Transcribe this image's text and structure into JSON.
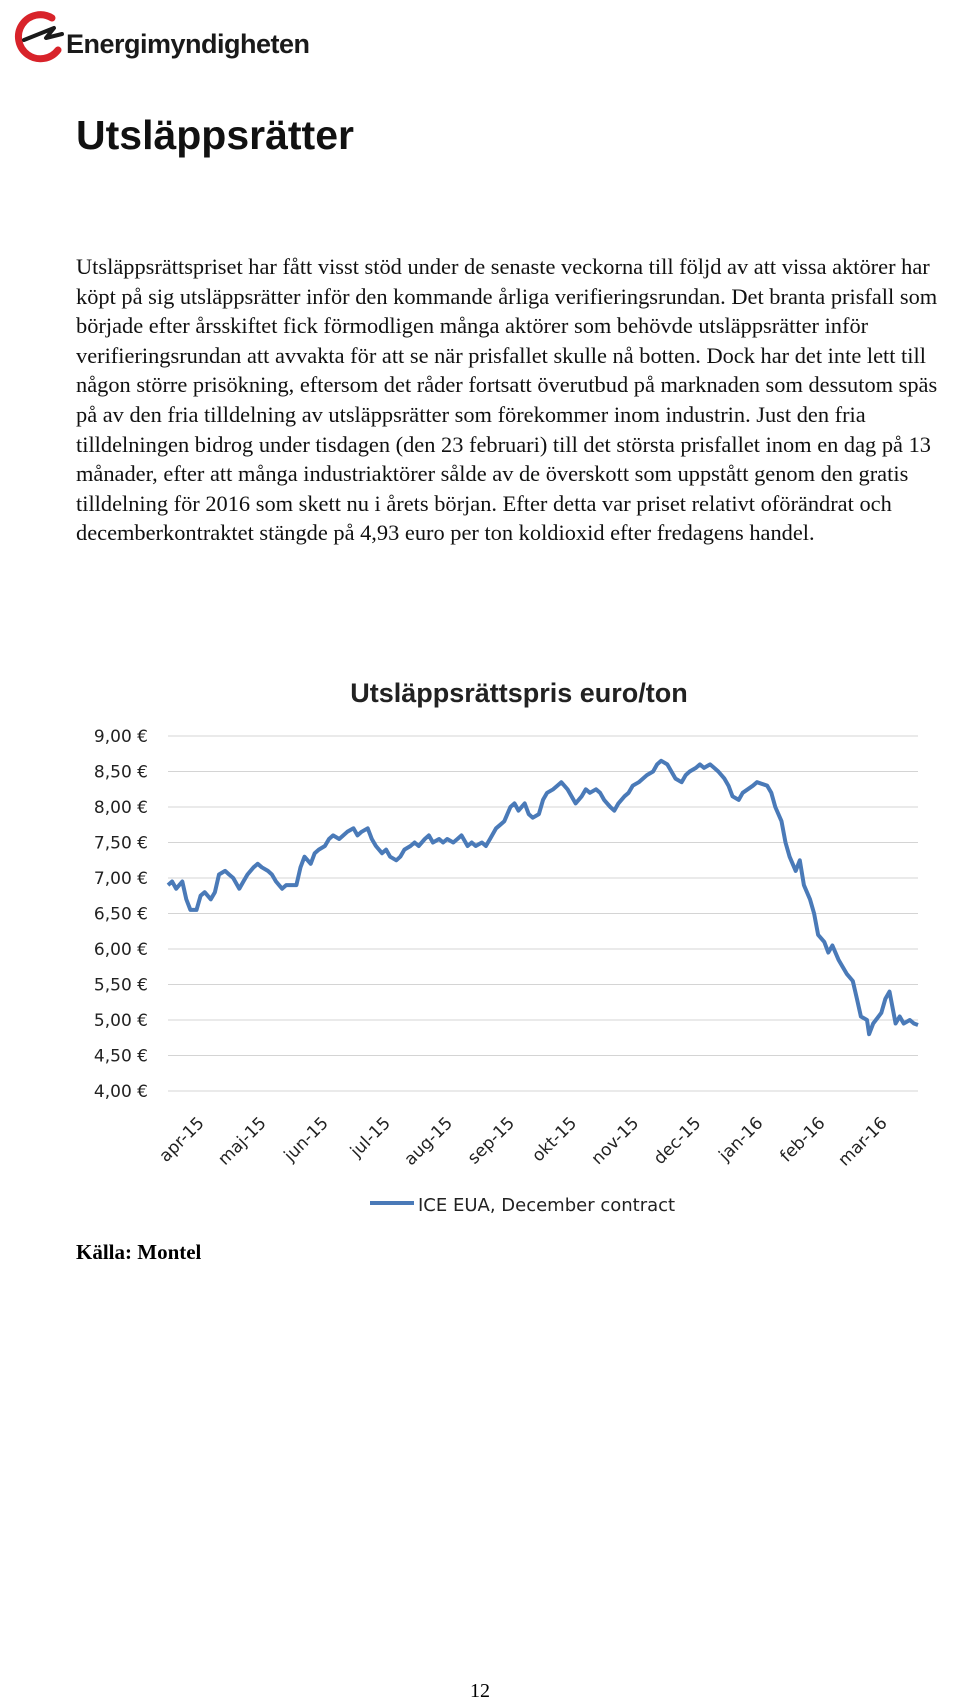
{
  "header": {
    "logo_text": "Energimyndigheten",
    "logo_icon": "energimyndigheten-logo-icon"
  },
  "page": {
    "title": "Utsläppsrätter",
    "paragraph": "Utsläppsrättspriset har fått visst stöd under de senaste veckorna till följd av att vissa aktörer har köpt på sig utsläppsrätter inför den kommande årliga verifieringsrundan. Det branta prisfall som började efter årsskiftet fick förmodligen många aktörer som behövde utsläppsrätter inför verifieringsrundan att avvakta för att se när prisfallet skulle nå botten. Dock har det inte lett till någon större prisökning, eftersom det råder fortsatt överutbud på marknaden som dessutom späs på av den fria tilldelning av utsläppsrätter som förekommer inom industrin. Just den fria tilldelningen bidrog under tisdagen (den 23 februari) till det största prisfallet inom en dag på 13 månader, efter att många industriaktörer sålde av de överskott som uppstått genom den gratis tilldelning för 2016 som skett nu i årets början. Efter detta var priset relativt oförändrat och decemberkontraktet stängde på 4,93 euro per ton koldioxid efter fredagens handel.",
    "source": "Källa: Montel",
    "page_number": "12"
  },
  "chart_data": {
    "type": "line",
    "title": "Utsläppsrättspris euro/ton",
    "xlabel": "",
    "ylabel": "",
    "ylim": [
      4.0,
      9.0
    ],
    "y_ticks": [
      "9,00 €",
      "8,50 €",
      "8,00 €",
      "7,50 €",
      "7,00 €",
      "6,50 €",
      "6,00 €",
      "5,50 €",
      "5,00 €",
      "4,50 €",
      "4,00 €"
    ],
    "y_tick_values": [
      9.0,
      8.5,
      8.0,
      7.5,
      7.0,
      6.5,
      6.0,
      5.5,
      5.0,
      4.5,
      4.0
    ],
    "x_ticks": [
      "apr-15",
      "maj-15",
      "jun-15",
      "jul-15",
      "aug-15",
      "sep-15",
      "okt-15",
      "nov-15",
      "dec-15",
      "jan-16",
      "feb-16",
      "mar-16"
    ],
    "grid": true,
    "legend_position": "bottom",
    "series": [
      {
        "name": "ICE EUA, December contract",
        "color": "#4a7ab8",
        "points": [
          [
            "2015-03-16",
            6.9
          ],
          [
            "2015-03-18",
            6.95
          ],
          [
            "2015-03-20",
            6.85
          ],
          [
            "2015-03-23",
            6.95
          ],
          [
            "2015-03-25",
            6.7
          ],
          [
            "2015-03-27",
            6.55
          ],
          [
            "2015-03-30",
            6.55
          ],
          [
            "2015-04-01",
            6.75
          ],
          [
            "2015-04-03",
            6.8
          ],
          [
            "2015-04-06",
            6.7
          ],
          [
            "2015-04-08",
            6.8
          ],
          [
            "2015-04-10",
            7.05
          ],
          [
            "2015-04-13",
            7.1
          ],
          [
            "2015-04-15",
            7.05
          ],
          [
            "2015-04-17",
            7.0
          ],
          [
            "2015-04-20",
            6.85
          ],
          [
            "2015-04-22",
            6.95
          ],
          [
            "2015-04-24",
            7.05
          ],
          [
            "2015-04-27",
            7.15
          ],
          [
            "2015-04-29",
            7.2
          ],
          [
            "2015-05-01",
            7.15
          ],
          [
            "2015-05-04",
            7.1
          ],
          [
            "2015-05-06",
            7.05
          ],
          [
            "2015-05-08",
            6.95
          ],
          [
            "2015-05-11",
            6.85
          ],
          [
            "2015-05-13",
            6.9
          ],
          [
            "2015-05-15",
            6.9
          ],
          [
            "2015-05-18",
            6.9
          ],
          [
            "2015-05-20",
            7.15
          ],
          [
            "2015-05-22",
            7.3
          ],
          [
            "2015-05-25",
            7.2
          ],
          [
            "2015-05-27",
            7.35
          ],
          [
            "2015-05-29",
            7.4
          ],
          [
            "2015-06-01",
            7.45
          ],
          [
            "2015-06-03",
            7.55
          ],
          [
            "2015-06-05",
            7.6
          ],
          [
            "2015-06-08",
            7.55
          ],
          [
            "2015-06-10",
            7.6
          ],
          [
            "2015-06-12",
            7.65
          ],
          [
            "2015-06-15",
            7.7
          ],
          [
            "2015-06-17",
            7.6
          ],
          [
            "2015-06-19",
            7.65
          ],
          [
            "2015-06-22",
            7.7
          ],
          [
            "2015-06-24",
            7.55
          ],
          [
            "2015-06-26",
            7.45
          ],
          [
            "2015-06-29",
            7.35
          ],
          [
            "2015-07-01",
            7.4
          ],
          [
            "2015-07-03",
            7.3
          ],
          [
            "2015-07-06",
            7.25
          ],
          [
            "2015-07-08",
            7.3
          ],
          [
            "2015-07-10",
            7.4
          ],
          [
            "2015-07-13",
            7.45
          ],
          [
            "2015-07-15",
            7.5
          ],
          [
            "2015-07-17",
            7.45
          ],
          [
            "2015-07-20",
            7.55
          ],
          [
            "2015-07-22",
            7.6
          ],
          [
            "2015-07-24",
            7.5
          ],
          [
            "2015-07-27",
            7.55
          ],
          [
            "2015-07-29",
            7.5
          ],
          [
            "2015-07-31",
            7.55
          ],
          [
            "2015-08-03",
            7.5
          ],
          [
            "2015-08-05",
            7.55
          ],
          [
            "2015-08-07",
            7.6
          ],
          [
            "2015-08-10",
            7.45
          ],
          [
            "2015-08-12",
            7.5
          ],
          [
            "2015-08-14",
            7.45
          ],
          [
            "2015-08-17",
            7.5
          ],
          [
            "2015-08-19",
            7.45
          ],
          [
            "2015-08-21",
            7.55
          ],
          [
            "2015-08-24",
            7.7
          ],
          [
            "2015-08-26",
            7.75
          ],
          [
            "2015-08-28",
            7.8
          ],
          [
            "2015-08-31",
            8.0
          ],
          [
            "2015-09-02",
            8.05
          ],
          [
            "2015-09-04",
            7.95
          ],
          [
            "2015-09-07",
            8.05
          ],
          [
            "2015-09-09",
            7.9
          ],
          [
            "2015-09-11",
            7.85
          ],
          [
            "2015-09-14",
            7.9
          ],
          [
            "2015-09-16",
            8.1
          ],
          [
            "2015-09-18",
            8.2
          ],
          [
            "2015-09-21",
            8.25
          ],
          [
            "2015-09-23",
            8.3
          ],
          [
            "2015-09-25",
            8.35
          ],
          [
            "2015-09-28",
            8.25
          ],
          [
            "2015-09-30",
            8.15
          ],
          [
            "2015-10-02",
            8.05
          ],
          [
            "2015-10-05",
            8.15
          ],
          [
            "2015-10-07",
            8.25
          ],
          [
            "2015-10-09",
            8.2
          ],
          [
            "2015-10-12",
            8.25
          ],
          [
            "2015-10-14",
            8.2
          ],
          [
            "2015-10-16",
            8.1
          ],
          [
            "2015-10-19",
            8.0
          ],
          [
            "2015-10-21",
            7.95
          ],
          [
            "2015-10-23",
            8.05
          ],
          [
            "2015-10-26",
            8.15
          ],
          [
            "2015-10-28",
            8.2
          ],
          [
            "2015-10-30",
            8.3
          ],
          [
            "2015-11-02",
            8.35
          ],
          [
            "2015-11-04",
            8.4
          ],
          [
            "2015-11-06",
            8.45
          ],
          [
            "2015-11-09",
            8.5
          ],
          [
            "2015-11-11",
            8.6
          ],
          [
            "2015-11-13",
            8.65
          ],
          [
            "2015-11-16",
            8.6
          ],
          [
            "2015-11-18",
            8.5
          ],
          [
            "2015-11-20",
            8.4
          ],
          [
            "2015-11-23",
            8.35
          ],
          [
            "2015-11-25",
            8.45
          ],
          [
            "2015-11-27",
            8.5
          ],
          [
            "2015-11-30",
            8.55
          ],
          [
            "2015-12-02",
            8.6
          ],
          [
            "2015-12-04",
            8.55
          ],
          [
            "2015-12-07",
            8.6
          ],
          [
            "2015-12-09",
            8.55
          ],
          [
            "2015-12-11",
            8.5
          ],
          [
            "2015-12-14",
            8.4
          ],
          [
            "2015-12-16",
            8.3
          ],
          [
            "2015-12-18",
            8.15
          ],
          [
            "2015-12-21",
            8.1
          ],
          [
            "2015-12-23",
            8.2
          ],
          [
            "2015-12-28",
            8.3
          ],
          [
            "2015-12-30",
            8.35
          ],
          [
            "2016-01-04",
            8.3
          ],
          [
            "2016-01-06",
            8.2
          ],
          [
            "2016-01-08",
            8.0
          ],
          [
            "2016-01-11",
            7.8
          ],
          [
            "2016-01-13",
            7.5
          ],
          [
            "2016-01-15",
            7.3
          ],
          [
            "2016-01-18",
            7.1
          ],
          [
            "2016-01-20",
            7.25
          ],
          [
            "2016-01-22",
            6.9
          ],
          [
            "2016-01-25",
            6.7
          ],
          [
            "2016-01-27",
            6.5
          ],
          [
            "2016-01-29",
            6.2
          ],
          [
            "2016-02-01",
            6.1
          ],
          [
            "2016-02-03",
            5.95
          ],
          [
            "2016-02-05",
            6.05
          ],
          [
            "2016-02-08",
            5.85
          ],
          [
            "2016-02-10",
            5.75
          ],
          [
            "2016-02-12",
            5.65
          ],
          [
            "2016-02-15",
            5.55
          ],
          [
            "2016-02-17",
            5.3
          ],
          [
            "2016-02-19",
            5.05
          ],
          [
            "2016-02-22",
            5.0
          ],
          [
            "2016-02-23",
            4.8
          ],
          [
            "2016-02-25",
            4.95
          ],
          [
            "2016-02-29",
            5.1
          ],
          [
            "2016-03-02",
            5.3
          ],
          [
            "2016-03-04",
            5.4
          ],
          [
            "2016-03-07",
            4.95
          ],
          [
            "2016-03-09",
            5.05
          ],
          [
            "2016-03-11",
            4.95
          ],
          [
            "2016-03-14",
            5.0
          ],
          [
            "2016-03-16",
            4.95
          ],
          [
            "2016-03-18",
            4.93
          ]
        ]
      }
    ]
  }
}
